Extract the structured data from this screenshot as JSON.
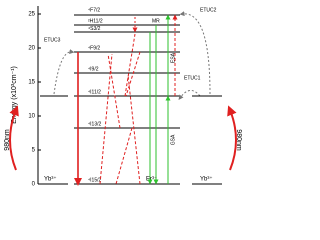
{
  "axis": {
    "label": "Energy (x10³cm⁻¹)",
    "ticks": [
      0,
      5,
      10,
      15,
      20,
      25
    ]
  },
  "er_levels": [
    "⁴F7/2",
    "²H11/2",
    "⁴S3/2",
    "⁴F9/2",
    "⁴I9/2",
    "⁴I11/2",
    "⁴I13/2",
    "⁴I15/2"
  ],
  "yb_left": {
    "ion": "Yb³⁺",
    "excitation": "980nm"
  },
  "yb_right": {
    "ion": "Yb³⁺",
    "excitation": "980nm"
  },
  "er_ion": "Er³⁺",
  "processes": {
    "etuc1": "ETUC1",
    "etuc2": "ETUC2",
    "etuc3": "ETUC3",
    "esa": "ESA",
    "gsa": "GSA",
    "mr": "MR"
  }
}
